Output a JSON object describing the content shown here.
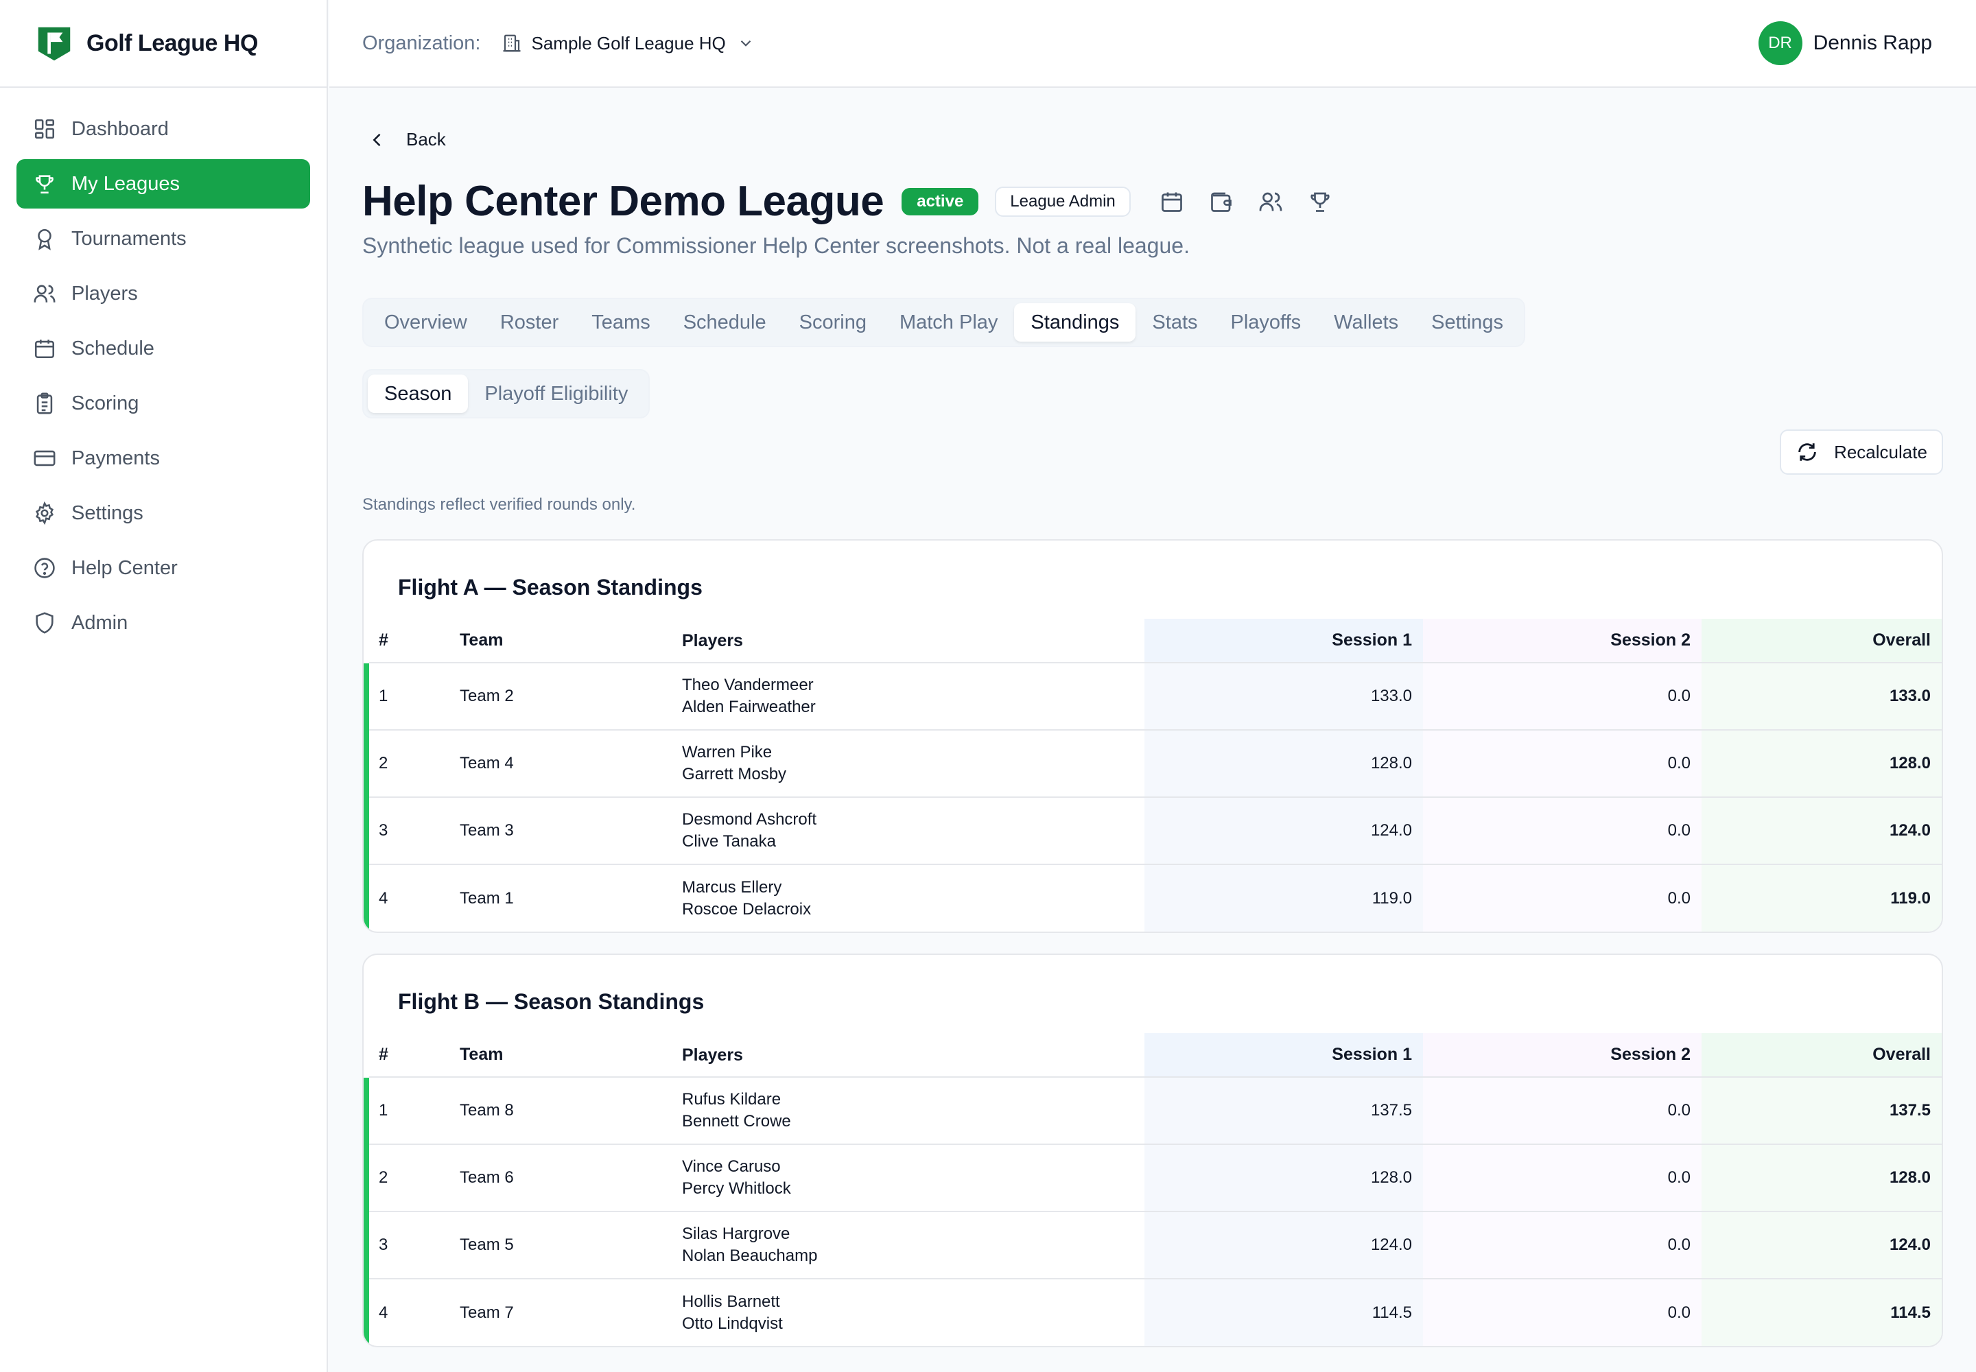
{
  "brand": {
    "name": "Golf League HQ"
  },
  "sidebar": {
    "items": [
      {
        "label": "Dashboard",
        "icon": "dashboard-icon"
      },
      {
        "label": "My Leagues",
        "icon": "trophy-icon",
        "active": true
      },
      {
        "label": "Tournaments",
        "icon": "award-icon"
      },
      {
        "label": "Players",
        "icon": "users-icon"
      },
      {
        "label": "Schedule",
        "icon": "calendar-icon"
      },
      {
        "label": "Scoring",
        "icon": "clipboard-icon"
      },
      {
        "label": "Payments",
        "icon": "credit-card-icon"
      },
      {
        "label": "Settings",
        "icon": "gear-icon"
      },
      {
        "label": "Help Center",
        "icon": "help-circle-icon"
      },
      {
        "label": "Admin",
        "icon": "shield-icon"
      }
    ]
  },
  "topbar": {
    "org_label": "Organization:",
    "org_name": "Sample Golf League HQ",
    "user_initials": "DR",
    "user_name": "Dennis Rapp"
  },
  "page": {
    "back_label": "Back",
    "title": "Help Center Demo League",
    "status_badge": "active",
    "role_badge": "League Admin",
    "subtitle": "Synthetic league used for Commissioner Help Center screenshots. Not a real league.",
    "tabs": [
      "Overview",
      "Roster",
      "Teams",
      "Schedule",
      "Scoring",
      "Match Play",
      "Standings",
      "Stats",
      "Playoffs",
      "Wallets",
      "Settings"
    ],
    "active_tab": "Standings",
    "subtabs": [
      "Season",
      "Playoff Eligibility"
    ],
    "active_subtab": "Season",
    "recalculate_label": "Recalculate",
    "note": "Standings reflect verified rounds only."
  },
  "accent": "#16a34a",
  "columns": [
    "#",
    "Team",
    "Players",
    "Session 1",
    "Session 2",
    "Overall"
  ],
  "flights": [
    {
      "title": "Flight A — Season Standings",
      "rows": [
        {
          "rank": "1",
          "team": "Team 2",
          "players": [
            "Theo Vandermeer",
            "Alden Fairweather"
          ],
          "s1": "133.0",
          "s2": "0.0",
          "overall": "133.0"
        },
        {
          "rank": "2",
          "team": "Team 4",
          "players": [
            "Warren Pike",
            "Garrett Mosby"
          ],
          "s1": "128.0",
          "s2": "0.0",
          "overall": "128.0"
        },
        {
          "rank": "3",
          "team": "Team 3",
          "players": [
            "Desmond Ashcroft",
            "Clive Tanaka"
          ],
          "s1": "124.0",
          "s2": "0.0",
          "overall": "124.0"
        },
        {
          "rank": "4",
          "team": "Team 1",
          "players": [
            "Marcus Ellery",
            "Roscoe Delacroix"
          ],
          "s1": "119.0",
          "s2": "0.0",
          "overall": "119.0"
        }
      ]
    },
    {
      "title": "Flight B — Season Standings",
      "rows": [
        {
          "rank": "1",
          "team": "Team 8",
          "players": [
            "Rufus Kildare",
            "Bennett Crowe"
          ],
          "s1": "137.5",
          "s2": "0.0",
          "overall": "137.5"
        },
        {
          "rank": "2",
          "team": "Team 6",
          "players": [
            "Vince Caruso",
            "Percy Whitlock"
          ],
          "s1": "128.0",
          "s2": "0.0",
          "overall": "128.0"
        },
        {
          "rank": "3",
          "team": "Team 5",
          "players": [
            "Silas Hargrove",
            "Nolan Beauchamp"
          ],
          "s1": "124.0",
          "s2": "0.0",
          "overall": "124.0"
        },
        {
          "rank": "4",
          "team": "Team 7",
          "players": [
            "Hollis Barnett",
            "Otto Lindqvist"
          ],
          "s1": "114.5",
          "s2": "0.0",
          "overall": "114.5"
        }
      ]
    }
  ]
}
